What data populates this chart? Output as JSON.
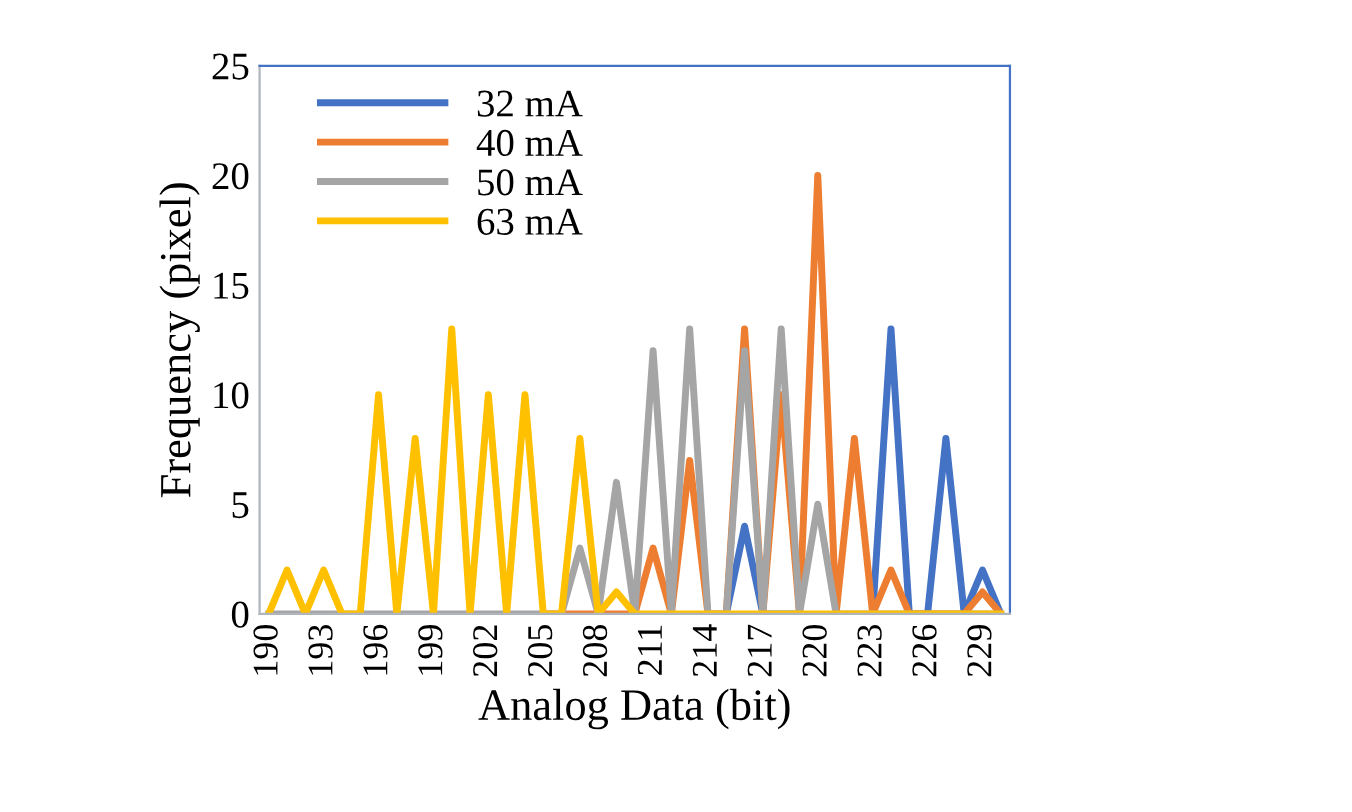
{
  "chart_data": {
    "type": "line",
    "xlabel": "Analog Data (bit)",
    "ylabel": "Frequency (pixel)",
    "categories": [
      "190",
      null,
      null,
      "193",
      null,
      null,
      "196",
      null,
      null,
      "199",
      null,
      null,
      "202",
      null,
      null,
      "205",
      null,
      null,
      "208",
      null,
      null,
      "211",
      null,
      null,
      "214",
      null,
      null,
      "217",
      null,
      null,
      "220",
      null,
      null,
      "223",
      null,
      null,
      "226",
      null,
      null,
      "229",
      null
    ],
    "series": [
      {
        "name": "32 mA",
        "color": "#4472c4",
        "values": [
          null,
          null,
          null,
          null,
          null,
          null,
          null,
          null,
          null,
          null,
          null,
          null,
          null,
          null,
          null,
          null,
          null,
          null,
          null,
          null,
          null,
          null,
          null,
          null,
          null,
          0,
          4,
          0,
          0,
          0,
          null,
          null,
          null,
          0,
          13,
          0,
          0,
          8,
          0,
          2,
          0
        ]
      },
      {
        "name": "40 mA",
        "color": "#ed7d31",
        "values": [
          null,
          null,
          null,
          null,
          null,
          null,
          null,
          null,
          null,
          null,
          null,
          null,
          null,
          null,
          null,
          0,
          0,
          0,
          0,
          0,
          0,
          3,
          0,
          7,
          0,
          0,
          13,
          0,
          10,
          0,
          20,
          0,
          8,
          0,
          2,
          0,
          0,
          0,
          0,
          1,
          0
        ]
      },
      {
        "name": "50 mA",
        "color": "#a5a5a5",
        "values": [
          0,
          0,
          0,
          0,
          0,
          0,
          0,
          0,
          0,
          0,
          0,
          0,
          0,
          0,
          0,
          0,
          0,
          3,
          0,
          6,
          0,
          12,
          0,
          13,
          0,
          0,
          12,
          0,
          13,
          0,
          5,
          0,
          0,
          0,
          0,
          0,
          0,
          0,
          0,
          0,
          0
        ]
      },
      {
        "name": "63 mA",
        "color": "#ffc000",
        "values": [
          0,
          2,
          0,
          2,
          0,
          0,
          10,
          0,
          8,
          0,
          13,
          0,
          10,
          0,
          10,
          0,
          0,
          8,
          0,
          1,
          0,
          0,
          0,
          0,
          0,
          0,
          0,
          0,
          0,
          0,
          0,
          0,
          0,
          0,
          0,
          0,
          0,
          0,
          0,
          0,
          0
        ]
      }
    ],
    "ylim": [
      0,
      25
    ],
    "yticks": [
      0,
      5,
      10,
      15,
      20,
      25
    ],
    "grid": false,
    "legend": "top left",
    "marker": "none",
    "line_style": "solid"
  }
}
